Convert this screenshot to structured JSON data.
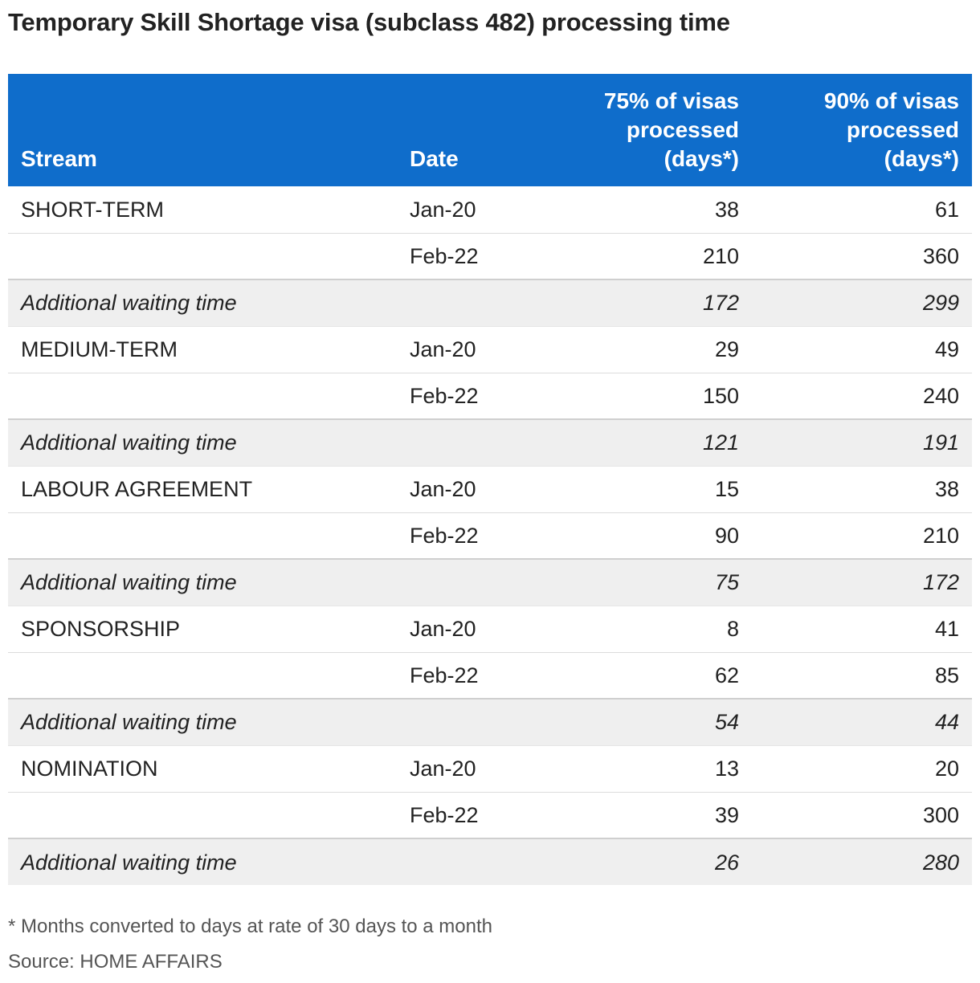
{
  "title": "Temporary Skill Shortage visa (subclass 482) processing time",
  "headers": {
    "stream": "Stream",
    "date": "Date",
    "p75": [
      "75% of visas",
      "processed",
      "(days*)"
    ],
    "p90": [
      "90% of visas",
      "processed",
      "(days*)"
    ]
  },
  "chart_data": {
    "type": "table",
    "title": "Temporary Skill Shortage visa (subclass 482) processing time",
    "columns": [
      "Stream",
      "Date",
      "75% of visas processed (days*)",
      "90% of visas processed (days*)"
    ],
    "rows": [
      {
        "stream": "SHORT-TERM",
        "date": "Jan-20",
        "p75": "38",
        "p90": "61",
        "kind": "data"
      },
      {
        "stream": "",
        "date": "Feb-22",
        "p75": "210",
        "p90": "360",
        "kind": "data"
      },
      {
        "stream": "Additional waiting time",
        "date": "",
        "p75": "172",
        "p90": "299",
        "kind": "diff"
      },
      {
        "stream": "MEDIUM-TERM",
        "date": "Jan-20",
        "p75": "29",
        "p90": "49",
        "kind": "data"
      },
      {
        "stream": "",
        "date": "Feb-22",
        "p75": "150",
        "p90": "240",
        "kind": "data"
      },
      {
        "stream": "Additional waiting time",
        "date": "",
        "p75": "121",
        "p90": "191",
        "kind": "diff"
      },
      {
        "stream": "LABOUR AGREEMENT",
        "date": "Jan-20",
        "p75": "15",
        "p90": "38",
        "kind": "data"
      },
      {
        "stream": "",
        "date": "Feb-22",
        "p75": "90",
        "p90": "210",
        "kind": "data"
      },
      {
        "stream": "Additional waiting time",
        "date": "",
        "p75": "75",
        "p90": "172",
        "kind": "diff"
      },
      {
        "stream": "SPONSORSHIP",
        "date": "Jan-20",
        "p75": "8",
        "p90": "41",
        "kind": "data"
      },
      {
        "stream": "",
        "date": "Feb-22",
        "p75": "62",
        "p90": "85",
        "kind": "data"
      },
      {
        "stream": "Additional waiting time",
        "date": "",
        "p75": "54",
        "p90": "44",
        "kind": "diff"
      },
      {
        "stream": "NOMINATION",
        "date": "Jan-20",
        "p75": "13",
        "p90": "20",
        "kind": "data"
      },
      {
        "stream": "",
        "date": "Feb-22",
        "p75": "39",
        "p90": "300",
        "kind": "data"
      },
      {
        "stream": "Additional waiting time",
        "date": "",
        "p75": "26",
        "p90": "280",
        "kind": "diff"
      }
    ]
  },
  "footnote": "* Months converted to days at rate of 30 days to a month",
  "source": "Source: HOME AFFAIRS",
  "colors": {
    "header_bg": "#0f6dcb",
    "diff_row_bg": "#efefef"
  }
}
